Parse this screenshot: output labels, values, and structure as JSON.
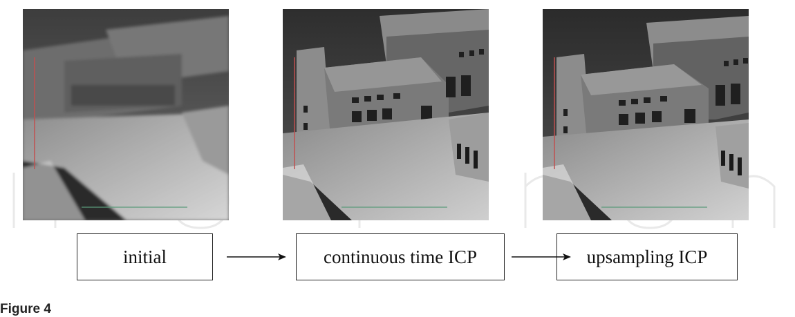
{
  "figure": {
    "steps": [
      {
        "label": "initial"
      },
      {
        "label": "continuous time ICP"
      },
      {
        "label": "upsampling ICP"
      }
    ],
    "caption": "Figure 4"
  }
}
